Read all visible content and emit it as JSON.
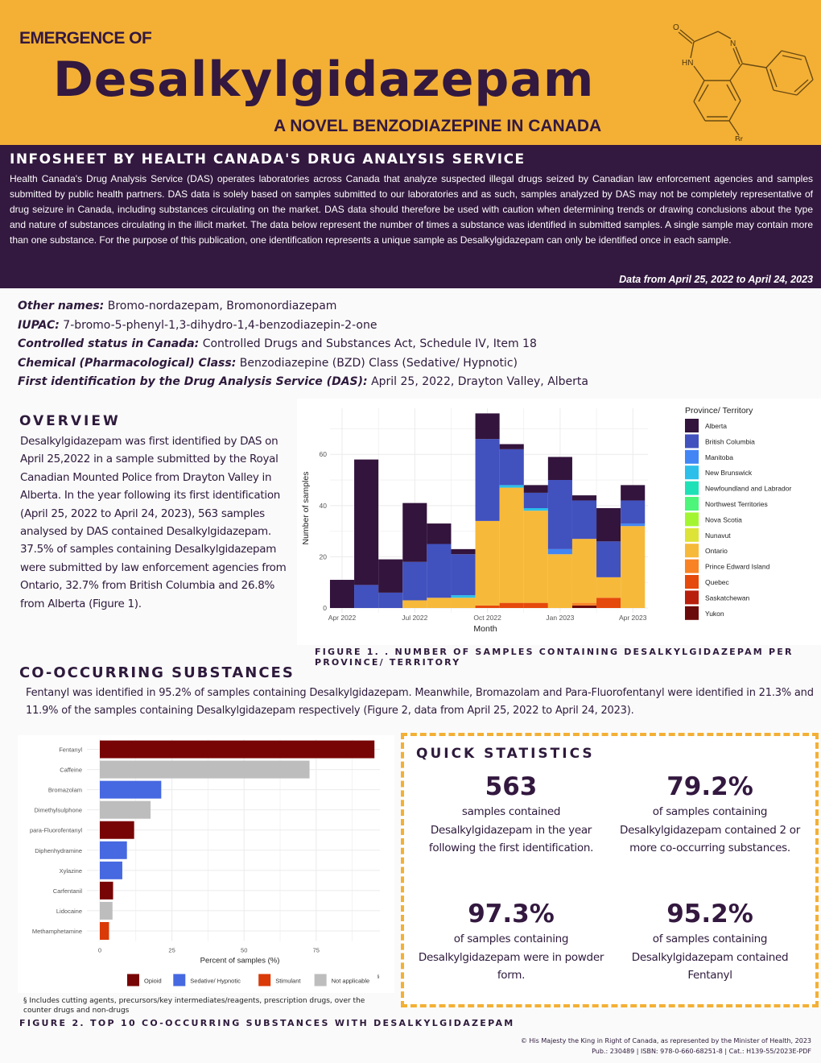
{
  "header": {
    "kicker": "EMERGENCE OF",
    "title": "Desalkylgidazepam",
    "subtitle": "A NOVEL BENZODIAZEPINE IN CANADA",
    "molecule_labels": {
      "o": "O",
      "n": "N",
      "hn": "HN",
      "br": "Br"
    }
  },
  "infosheet": {
    "heading": "INFOSHEET BY HEALTH CANADA'S DRUG ANALYSIS SERVICE",
    "body": "Health Canada's Drug Analysis Service (DAS) operates laboratories across Canada that analyze suspected illegal drugs seized by Canadian law enforcement agencies and samples submitted by public health partners. DAS data is solely based on samples submitted to our laboratories and as such, samples analyzed by DAS may not be completely representative of drug seizure in Canada, including substances circulating on the market. DAS data should therefore be used with caution when determining trends or drawing conclusions about the type and nature of substances circulating in the illicit market.  The data below represent the number of times a substance was identified in submitted samples. A single sample may contain more than one substance. For the purpose of this publication, one identification represents a unique sample as Desalkylgidazepam can only be identified once in each sample.",
    "date_range": "Data from April 25, 2022 to April 24, 2023"
  },
  "facts": [
    {
      "label": "Other names:",
      "value": " Bromo-nordazepam, Bromonordiazepam"
    },
    {
      "label": "IUPAC:",
      "value": " 7-bromo-5-phenyl-1,3-dihydro-1,4-benzodiazepin-2-one"
    },
    {
      "label": "Controlled status in Canada:",
      "value": " Controlled Drugs and Substances Act, Schedule IV, Item 18"
    },
    {
      "label": "Chemical (Pharmacological) Class:",
      "value": " Benzodiazepine (BZD) Class (Sedative/ Hypnotic)"
    },
    {
      "label": "First identification by the Drug Analysis Service (DAS):",
      "value": " April 25, 2022, Drayton Valley, Alberta"
    }
  ],
  "overview": {
    "heading": "OVERVIEW",
    "body": "Desalkylgidazepam was first identified by DAS on April 25,2022 in a sample submitted by the Royal Canadian Mounted Police from Drayton Valley in Alberta. In the year following its first identification (April 25, 2022 to April 24, 2023), 563 samples analysed by DAS contained Desalkylgidazepam. 37.5% of samples containing Desalkylgidazepam were submitted by law enforcement agencies from Ontario, 32.7% from British Columbia and 26.8% from Alberta (Figure 1)."
  },
  "figure1_caption": "FIGURE 1. . NUMBER OF SAMPLES CONTAINING DESALKYLGIDAZEPAM PER PROVINCE/ TERRITORY",
  "co_occurring": {
    "heading": "CO-OCCURRING SUBSTANCES",
    "body": "Fentanyl was identified in 95.2% of samples containing Desalkylgidazepam. Meanwhile, Bromazolam and Para-Fluorofentanyl were identified in 21.3% and 11.9% of the samples containing Desalkylgidazepam respectively (Figure 2, data from April 25, 2022 to April 24, 2023)."
  },
  "figure2_footnote": "§ Includes cutting agents, precursors/key intermediates/reagents, prescription drugs, over the counter drugs and non-drugs",
  "figure2_caption": "FIGURE 2. TOP 10 CO-OCCURRING SUBSTANCES WITH DESALKYLGIDAZEPAM",
  "quick_stats": {
    "heading": "QUICK STATISTICS",
    "items": [
      {
        "value": "563",
        "desc": "samples contained Desalkylgidazepam in the year following the first identification."
      },
      {
        "value": "79.2%",
        "desc": "of samples containing Desalkylgidazepam contained 2 or more co-occurring substances."
      },
      {
        "value": "97.3%",
        "desc": "of samples containing Desalkylgidazepam were in powder form."
      },
      {
        "value": "95.2%",
        "desc": "of samples containing Desalkylgidazepam contained Fentanyl"
      }
    ]
  },
  "copyright": {
    "line1": "© His Majesty the King in Right of Canada, as represented by the Minister of Health, 2023",
    "line2": "Pub.: 230489 | ISBN: 978-0-660-68251-8 | Cat.: H139-55/2023E-PDF"
  },
  "chart_data": [
    {
      "type": "bar",
      "stacked": true,
      "title": "",
      "xlabel": "Month",
      "ylabel": "Number of samples",
      "ylim": [
        0,
        78
      ],
      "yticks": [
        0,
        20,
        40,
        60
      ],
      "xtick_labels": [
        "Apr 2022",
        "Jul 2022",
        "Oct 2022",
        "Jan 2023",
        "Apr 2023"
      ],
      "xtick_positions": [
        0,
        3,
        6,
        9,
        12
      ],
      "categories": [
        "Apr 2022",
        "May 2022",
        "Jun 2022",
        "Jul 2022",
        "Aug 2022",
        "Sep 2022",
        "Oct 2022",
        "Nov 2022",
        "Dec 2022",
        "Jan 2023",
        "Feb 2023",
        "Mar 2023",
        "Apr 2023"
      ],
      "legend_title": "Province/ Territory",
      "legend_position": "right",
      "grid": true,
      "series": [
        {
          "name": "Yukon",
          "color": "#6b0a0a",
          "values": [
            0,
            0,
            0,
            0,
            0,
            0,
            0,
            0,
            0,
            0,
            1,
            0,
            0
          ]
        },
        {
          "name": "Saskatchewan",
          "color": "#b81f0c",
          "values": [
            0,
            0,
            0,
            0,
            0,
            0,
            0,
            0,
            0,
            0,
            0,
            0,
            0
          ]
        },
        {
          "name": "Quebec",
          "color": "#e5490b",
          "values": [
            0,
            0,
            0,
            0,
            0,
            0,
            1,
            2,
            2,
            0,
            0,
            4,
            0
          ]
        },
        {
          "name": "Prince Edward Island",
          "color": "#f98224",
          "values": [
            0,
            0,
            0,
            0,
            0,
            0,
            0,
            0,
            0,
            0,
            1,
            0,
            0
          ]
        },
        {
          "name": "Ontario",
          "color": "#f7b93a",
          "values": [
            0,
            0,
            0,
            3,
            4,
            4,
            33,
            45,
            36,
            21,
            25,
            8,
            32
          ]
        },
        {
          "name": "Nunavut",
          "color": "#dde337",
          "values": [
            0,
            0,
            0,
            0,
            0,
            0,
            0,
            0,
            0,
            0,
            0,
            0,
            0
          ]
        },
        {
          "name": "Nova Scotia",
          "color": "#a4f531",
          "values": [
            0,
            0,
            0,
            0,
            0,
            0,
            0,
            0,
            0,
            0,
            0,
            0,
            0
          ]
        },
        {
          "name": "Northwest Territories",
          "color": "#4df57a",
          "values": [
            0,
            0,
            0,
            0,
            0,
            0,
            0,
            0,
            0,
            0,
            0,
            0,
            0
          ]
        },
        {
          "name": "Newfoundland and Labrador",
          "color": "#1ee1b8",
          "values": [
            0,
            0,
            0,
            0,
            0,
            0,
            0,
            0,
            0,
            0,
            0,
            0,
            0
          ]
        },
        {
          "name": "New Brunswick",
          "color": "#2cbfe9",
          "values": [
            0,
            0,
            0,
            0,
            0,
            1,
            0,
            1,
            1,
            0,
            0,
            0,
            0
          ]
        },
        {
          "name": "Manitoba",
          "color": "#4286f5",
          "values": [
            0,
            0,
            0,
            0,
            0,
            0,
            0,
            0,
            0,
            2,
            0,
            0,
            1
          ]
        },
        {
          "name": "British Columbia",
          "color": "#4151be",
          "values": [
            0,
            9,
            6,
            15,
            21,
            16,
            32,
            14,
            6,
            27,
            15,
            14,
            9
          ]
        },
        {
          "name": "Alberta",
          "color": "#33143c",
          "values": [
            11,
            49,
            13,
            23,
            8,
            2,
            10,
            2,
            3,
            9,
            2,
            13,
            6
          ]
        }
      ],
      "legend_order": [
        "Alberta",
        "British Columbia",
        "Manitoba",
        "New Brunswick",
        "Newfoundland and Labrador",
        "Northwest Territories",
        "Nova Scotia",
        "Nunavut",
        "Ontario",
        "Prince Edward Island",
        "Quebec",
        "Saskatchewan",
        "Yukon"
      ]
    },
    {
      "type": "bar",
      "orientation": "horizontal",
      "title": "",
      "xlabel": "Percent of samples (%)",
      "ylabel": "",
      "xlim": [
        0,
        95.2
      ],
      "xticks": [
        0,
        25,
        50,
        75
      ],
      "categories": [
        "Fentanyl",
        "Caffeine",
        "Bromazolam",
        "Dimethylsulphone",
        "para-Fluorofentanyl",
        "Diphenhydramine",
        "Xylazine",
        "Carfentanil",
        "Lidocaine",
        "Methamphetamine"
      ],
      "values": [
        95.2,
        72.7,
        21.3,
        17.6,
        11.9,
        9.4,
        7.8,
        4.6,
        4.4,
        3.2
      ],
      "groups": [
        "Opioid",
        "Not applicable",
        "Sedative/ Hypnotic",
        "Not applicable",
        "Opioid",
        "Sedative/ Hypnotic",
        "Sedative/ Hypnotic",
        "Opioid",
        "Not applicable",
        "Stimulant"
      ],
      "legend": [
        {
          "name": "Opioid",
          "color": "#780505"
        },
        {
          "name": "Sedative/ Hypnotic",
          "color": "#4668e0"
        },
        {
          "name": "Stimulant",
          "color": "#d93a08"
        },
        {
          "name": "Not applicable",
          "color": "#bdbdbd",
          "sup": "§"
        }
      ],
      "legend_position": "bottom",
      "grid": true
    }
  ]
}
